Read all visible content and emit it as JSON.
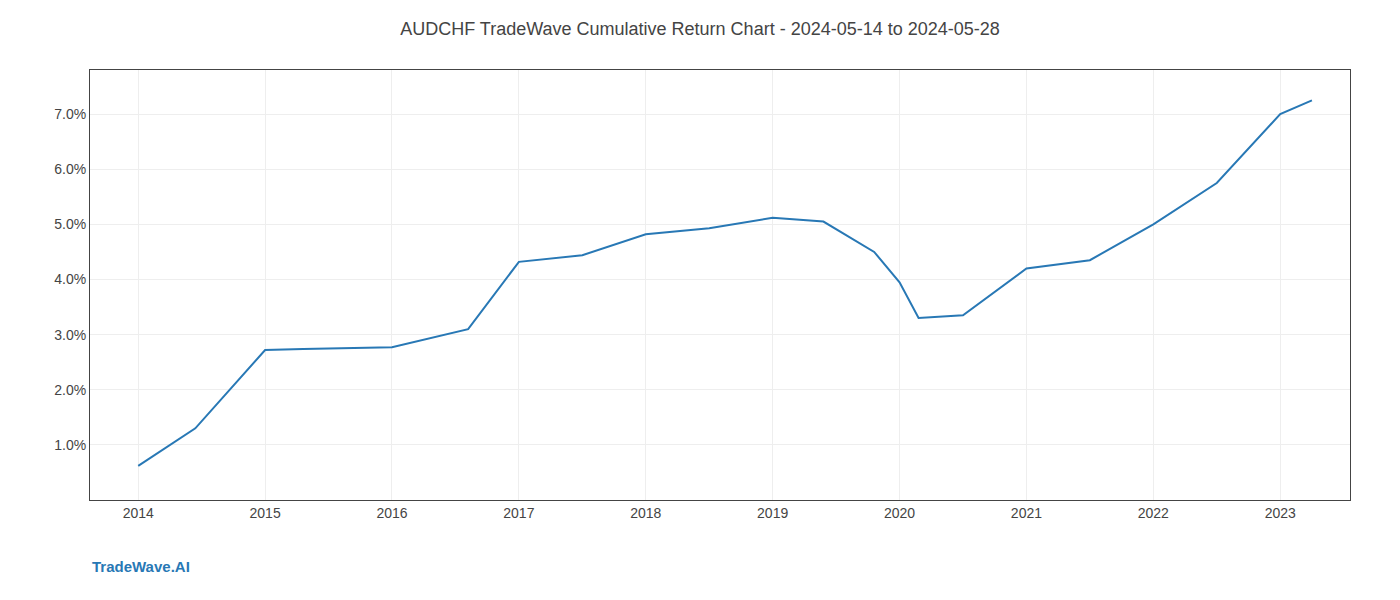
{
  "chart_data": {
    "type": "line",
    "title": "AUDCHF TradeWave Cumulative Return Chart - 2024-05-14 to 2024-05-28",
    "annotations": [
      "TradeWave.AI"
    ],
    "x": [
      2014.0,
      2014.45,
      2015.0,
      2015.3,
      2016.0,
      2016.6,
      2017.0,
      2017.5,
      2018.0,
      2018.5,
      2019.0,
      2019.4,
      2019.8,
      2020.0,
      2020.15,
      2020.5,
      2021.0,
      2021.5,
      2022.0,
      2022.5,
      2023.0,
      2023.25
    ],
    "values": [
      0.62,
      1.3,
      2.72,
      2.74,
      2.77,
      3.1,
      4.32,
      4.44,
      4.82,
      4.93,
      5.12,
      5.05,
      4.5,
      3.95,
      3.3,
      3.35,
      4.2,
      4.35,
      5.0,
      5.75,
      7.0,
      7.25
    ],
    "color": "#2878b5",
    "xlim": [
      2013.62,
      2023.55
    ],
    "ylim": [
      0.0,
      7.8
    ],
    "xticks": [
      2014,
      2015,
      2016,
      2017,
      2018,
      2019,
      2020,
      2021,
      2022,
      2023
    ],
    "yticks": [
      {
        "value": 1.0,
        "label": "1.0%"
      },
      {
        "value": 2.0,
        "label": "2.0%"
      },
      {
        "value": 3.0,
        "label": "3.0%"
      },
      {
        "value": 4.0,
        "label": "4.0%"
      },
      {
        "value": 5.0,
        "label": "5.0%"
      },
      {
        "value": 6.0,
        "label": "6.0%"
      },
      {
        "value": 7.0,
        "label": "7.0%"
      }
    ],
    "grid": true
  }
}
